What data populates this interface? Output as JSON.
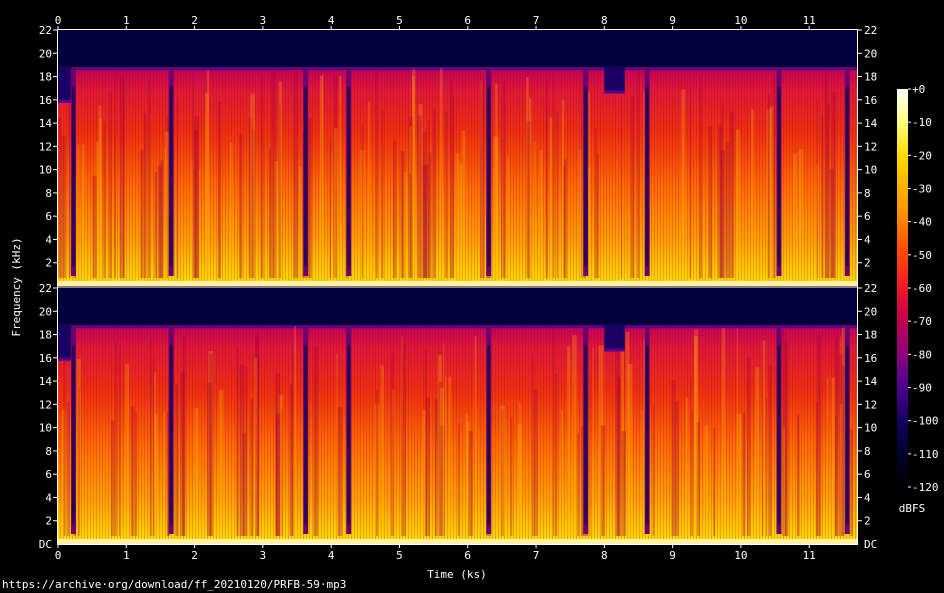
{
  "chart_data": {
    "type": "heatmap",
    "subtype": "spectrogram",
    "channels": 2,
    "xlabel": "Time (ks)",
    "ylabel": "Frequency (kHz)",
    "x_ticks": [
      "0",
      "1",
      "2",
      "3",
      "4",
      "5",
      "6",
      "7",
      "8",
      "9",
      "10",
      "11"
    ],
    "xlim": [
      0,
      11.7
    ],
    "y_ticks": [
      "2",
      "4",
      "6",
      "8",
      "10",
      "12",
      "14",
      "16",
      "18",
      "20",
      "22"
    ],
    "y_bottom_label_lower": "DC",
    "ylim": [
      0,
      22
    ],
    "colorbar": {
      "label": "dBFS",
      "ticks": [
        "+0",
        "-10",
        "-20",
        "-30",
        "-40",
        "-50",
        "-60",
        "-70",
        "-80",
        "-90",
        "-100",
        "-110",
        "-120"
      ],
      "range": [
        -120,
        0
      ],
      "colors": [
        "#ffffff",
        "#ffff80",
        "#ffd800",
        "#ff9800",
        "#ff5000",
        "#f01828",
        "#c00050",
        "#8a0080",
        "#4a0090",
        "#14005a",
        "#00002a",
        "#000000"
      ]
    },
    "content_cutoff_khz": 18.8,
    "quiet_gaps_ks": [
      0.22,
      1.65,
      3.62,
      4.25,
      6.3,
      7.72,
      8.62,
      10.55,
      11.55
    ],
    "reduced_bandwidth_spans": [
      {
        "start_ks": 0.0,
        "end_ks": 0.2,
        "cutoff_khz": 16.0
      },
      {
        "start_ks": 8.0,
        "end_ks": 8.3,
        "cutoff_khz": 16.8
      }
    ]
  },
  "footer": {
    "url": "https://archive·org/download/ff_20210120/PRFB-59·mp3"
  }
}
